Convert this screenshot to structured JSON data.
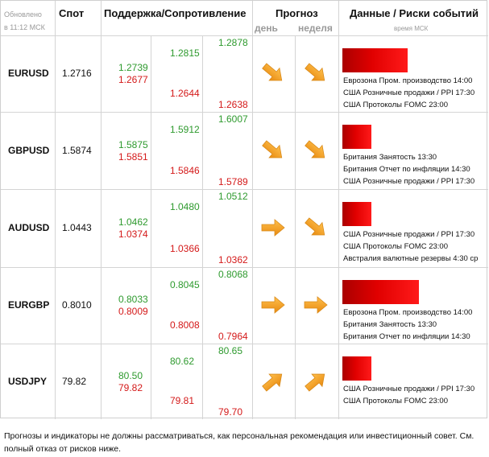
{
  "header": {
    "updated": "Обновлено",
    "updated_time": "в 11:12 МСК",
    "spot": "Спот",
    "support_resistance": "Поддержка/Сопротивление",
    "forecast": "Прогноз",
    "day": "день",
    "week": "неделя",
    "data_risks": "Данные / Риски событий",
    "time_note": "время МСК"
  },
  "rows": [
    {
      "pair": "EURUSD",
      "spot": "1.2716",
      "s1": "1.2739",
      "s1b": "1.2677",
      "s2": "1.2815",
      "s2b": "1.2644",
      "s3": "1.2878",
      "s3b": "1.2638",
      "day_icon": "arrow-down-right-icon",
      "week_icon": "arrow-down-right-icon",
      "risk_level": 0.85,
      "events": [
        "Еврозона Пром. производство 14:00",
        "США Розничные продажи / PPI 17:30",
        "США Протоколы FOMC 23:00"
      ]
    },
    {
      "pair": "GBPUSD",
      "spot": "1.5874",
      "s1": "1.5875",
      "s1b": "1.5851",
      "s2": "1.5912",
      "s2b": "1.5846",
      "s3": "1.6007",
      "s3b": "1.5789",
      "day_icon": "arrow-down-right-icon",
      "week_icon": "arrow-down-right-icon",
      "risk_level": 0.38,
      "events": [
        "Британия Занятость 13:30",
        "Британия Отчет по инфляции 14:30",
        "США Розничные продажи / PPI 17:30"
      ]
    },
    {
      "pair": "AUDUSD",
      "spot": "1.0443",
      "s1": "1.0462",
      "s1b": "1.0374",
      "s2": "1.0480",
      "s2b": "1.0366",
      "s3": "1.0512",
      "s3b": "1.0362",
      "day_icon": "arrow-right-icon",
      "week_icon": "arrow-down-right-icon",
      "risk_level": 0.38,
      "events": [
        "США Розничные продажи / PPI 17:30",
        "США Протоколы FOMC 23:00",
        "Австралия валютные резервы 4:30 ср"
      ]
    },
    {
      "pair": "EURGBP",
      "spot": "0.8010",
      "s1": "0.8033",
      "s1b": "0.8009",
      "s2": "0.8045",
      "s2b": "0.8008",
      "s3": "0.8068",
      "s3b": "0.7964",
      "day_icon": "arrow-right-icon",
      "week_icon": "arrow-right-icon",
      "risk_level": 1.0,
      "events": [
        "Еврозона Пром. производство 14:00",
        "Британия Занятость 13:30",
        "Британия Отчет по инфляции 14:30"
      ]
    },
    {
      "pair": "USDJPY",
      "spot": "79.82",
      "s1": "80.50",
      "s1b": "79.82",
      "s2": "80.62",
      "s2b": "79.81",
      "s3": "80.65",
      "s3b": "79.70",
      "day_icon": "arrow-up-right-icon",
      "week_icon": "arrow-up-right-icon",
      "risk_level": 0.38,
      "events": [
        "США Розничные продажи / PPI 17:30",
        "США Протоколы FOMC 23:00"
      ]
    }
  ],
  "footer": "Прогнозы и индикаторы не должны рассматриваться, как персональная рекомендация или инвестиционный совет. См. полный отказ от рисков ниже.",
  "colors": {
    "support": "#2e9a2e",
    "resistance": "#d41919",
    "arrow": "#f5a623",
    "risk_bar": "#e00000"
  }
}
